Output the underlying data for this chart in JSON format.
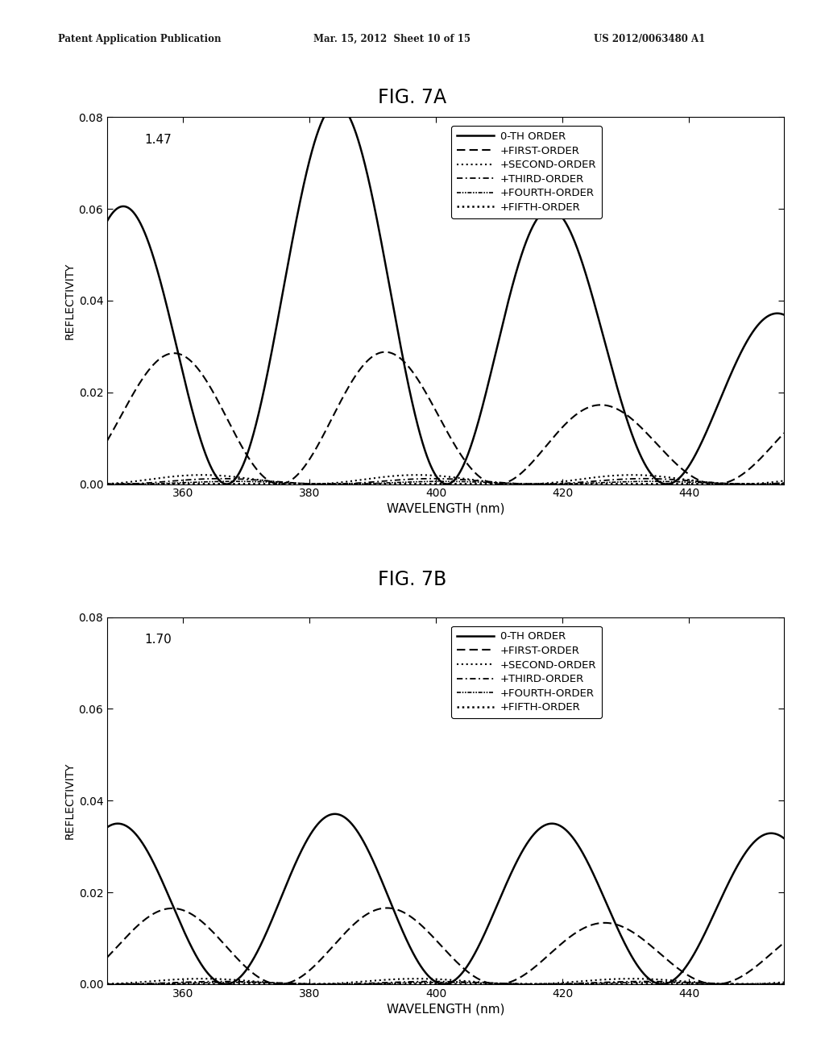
{
  "fig7a_label": "FIG. 7A",
  "fig7b_label": "FIG. 7B",
  "n_7a": "1.47",
  "n_7b": "1.70",
  "xlabel": "WAVELENGTH (nm)",
  "ylabel": "REFLECTIVITY",
  "xlim": [
    348,
    455
  ],
  "ylim": [
    0,
    0.08
  ],
  "xticks": [
    360,
    380,
    400,
    420,
    440
  ],
  "yticks": [
    0.0,
    0.02,
    0.04,
    0.06,
    0.08
  ],
  "header_left": "Patent Application Publication",
  "header_mid": "Mar. 15, 2012  Sheet 10 of 15",
  "header_right": "US 2012/0063480 A1",
  "legend_entries": [
    "0-TH ORDER",
    "+FIRST-ORDER",
    "+SECOND-ORDER",
    "+THIRD-ORDER",
    "+FOURTH-ORDER",
    "+FIFTH-ORDER"
  ],
  "bg_color": "#ffffff",
  "line_color": "#000000",
  "7a_order0_period": 34.8,
  "7a_order0_phase": 349.5,
  "7a_order0_amp": 0.03,
  "7a_order0_amp_mod_amp": 0.38,
  "7a_order0_amp_mod_period": 138,
  "7a_order1_period": 34.5,
  "7a_order1_phase": 358.0,
  "7a_order1_amp": 0.0115,
  "7a_order1_amp_mod_amp": 0.35,
  "7a_order1_amp_mod_period": 135,
  "7a_order1_amp_mod_phase": 342,
  "7b_order0_period": 34.5,
  "7b_order0_phase": 349.5,
  "7b_order0_amp": 0.0175,
  "7b_order1_period": 34.5,
  "7b_order1_phase": 358.0,
  "7b_order1_amp": 0.0075
}
